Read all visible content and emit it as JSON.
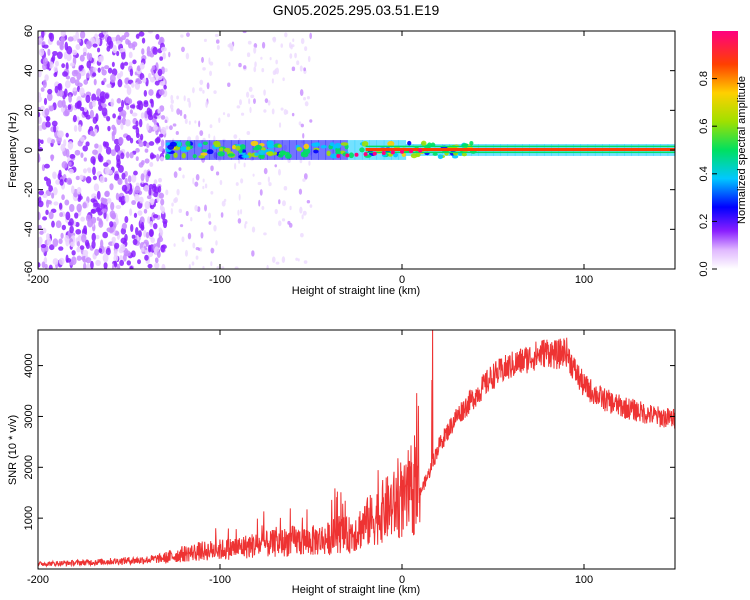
{
  "figure": {
    "title": "GN05.2025.295.03.51.E19"
  },
  "chart_data": [
    {
      "type": "heatmap",
      "title": "GN05.2025.295.03.51.E19",
      "xlabel": "Height of straight line (km)",
      "ylabel": "Frequency (Hz)",
      "xlim": [
        -200,
        150
      ],
      "ylim": [
        -60,
        60
      ],
      "xticks": [
        -200,
        -100,
        0,
        100
      ],
      "yticks": [
        -60,
        -40,
        -20,
        0,
        20,
        40,
        60
      ],
      "colorbar": {
        "label": "Normalized spectral amplitude",
        "range": [
          0,
          1
        ],
        "ticks": [
          "0.0",
          "0.2",
          "0.4",
          "0.6",
          "0.8"
        ],
        "colors": [
          "#ffffff",
          "#d9a6ff",
          "#8a1fff",
          "#0000ff",
          "#00c8ff",
          "#00e060",
          "#a0e000",
          "#ffd000",
          "#ff4000",
          "#ff0080"
        ]
      },
      "features": [
        {
          "name": "scattered noise",
          "x_range": [
            -200,
            -130
          ],
          "freq_range": [
            -60,
            60
          ],
          "amplitude": 0.15
        },
        {
          "name": "fading noise",
          "x_range": [
            -130,
            -50
          ],
          "freq_range": [
            -60,
            60
          ],
          "amplitude": 0.05
        },
        {
          "name": "main tone band",
          "x_range": [
            -130,
            150
          ],
          "freq_range": [
            -5,
            5
          ],
          "amplitude": 0.95
        }
      ]
    },
    {
      "type": "line",
      "xlabel": "Height of straight line (km)",
      "ylabel": "SNR (10 * v/v)",
      "xlim": [
        -200,
        150
      ],
      "ylim": [
        0,
        4700
      ],
      "xticks": [
        -200,
        -100,
        0,
        100
      ],
      "yticks": [
        1000,
        2000,
        3000,
        4000
      ],
      "series": [
        {
          "name": "SNR",
          "color": "#ee3333",
          "x": [
            -200,
            -180,
            -160,
            -140,
            -130,
            -120,
            -110,
            -100,
            -90,
            -80,
            -70,
            -60,
            -50,
            -40,
            -35,
            -30,
            -25,
            -20,
            -15,
            -10,
            -5,
            0,
            5,
            10,
            15,
            20,
            25,
            30,
            40,
            50,
            60,
            70,
            80,
            85,
            90,
            95,
            100,
            110,
            120,
            130,
            140,
            150
          ],
          "values": [
            100,
            120,
            150,
            180,
            220,
            300,
            350,
            380,
            420,
            470,
            500,
            550,
            550,
            600,
            700,
            650,
            750,
            900,
            1000,
            1150,
            1250,
            1300,
            1400,
            1500,
            1900,
            2400,
            2700,
            3000,
            3400,
            3800,
            4000,
            4150,
            4280,
            4200,
            4300,
            3900,
            3600,
            3350,
            3200,
            3100,
            3000,
            2950
          ]
        }
      ]
    }
  ]
}
